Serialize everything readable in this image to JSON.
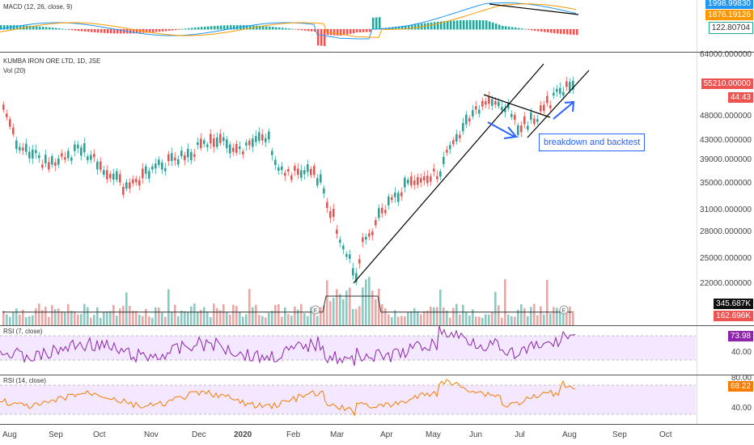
{
  "macd": {
    "legend": "MACD (12, 26, close, 9)",
    "badges": {
      "top": "1998.99830",
      "signal": "1876.19126",
      "hist": "122.80704"
    },
    "colors": {
      "macd": "#2196f3",
      "signal": "#ff9800",
      "hist_pos": "#26a69a",
      "hist_neg": "#ef5350"
    }
  },
  "price": {
    "legend1": "KUMBA IRON ORE LTD, 1D, JSE",
    "legend2": "Vol (20)",
    "ticks": [
      "64000.000000",
      "55210.00000",
      "48000.000000",
      "43000.000000",
      "39000.000000",
      "35000.000000",
      "31000.000000",
      "28000.000000",
      "25000.000000",
      "22000.000000"
    ],
    "last_price": "55210.00000",
    "countdown": "44:43",
    "vol_badge1": "345.687K",
    "vol_badge2": "162.696K",
    "annotation": "breakdown and backtest",
    "earnings_marker": "E",
    "colors": {
      "up": "#26a69a",
      "down": "#ef5350",
      "vol_up": "#7fcfc6",
      "vol_down": "#f5a3a1",
      "annotation": "#2962ff"
    }
  },
  "rsi7": {
    "legend": "RSI (7, close)",
    "value": "73.98",
    "tick": "40.00",
    "color": "#8e24aa"
  },
  "rsi14": {
    "legend": "RSI (14, close)",
    "value": "68.22",
    "ticks": [
      "80.00",
      "40.00"
    ],
    "color": "#f57c00"
  },
  "xaxis": {
    "labels": [
      "Aug",
      "Sep",
      "Oct",
      "Nov",
      "Dec",
      "2020",
      "Feb",
      "Mar",
      "Apr",
      "May",
      "Jun",
      "Jul",
      "Aug",
      "Sep",
      "Oct"
    ]
  }
}
